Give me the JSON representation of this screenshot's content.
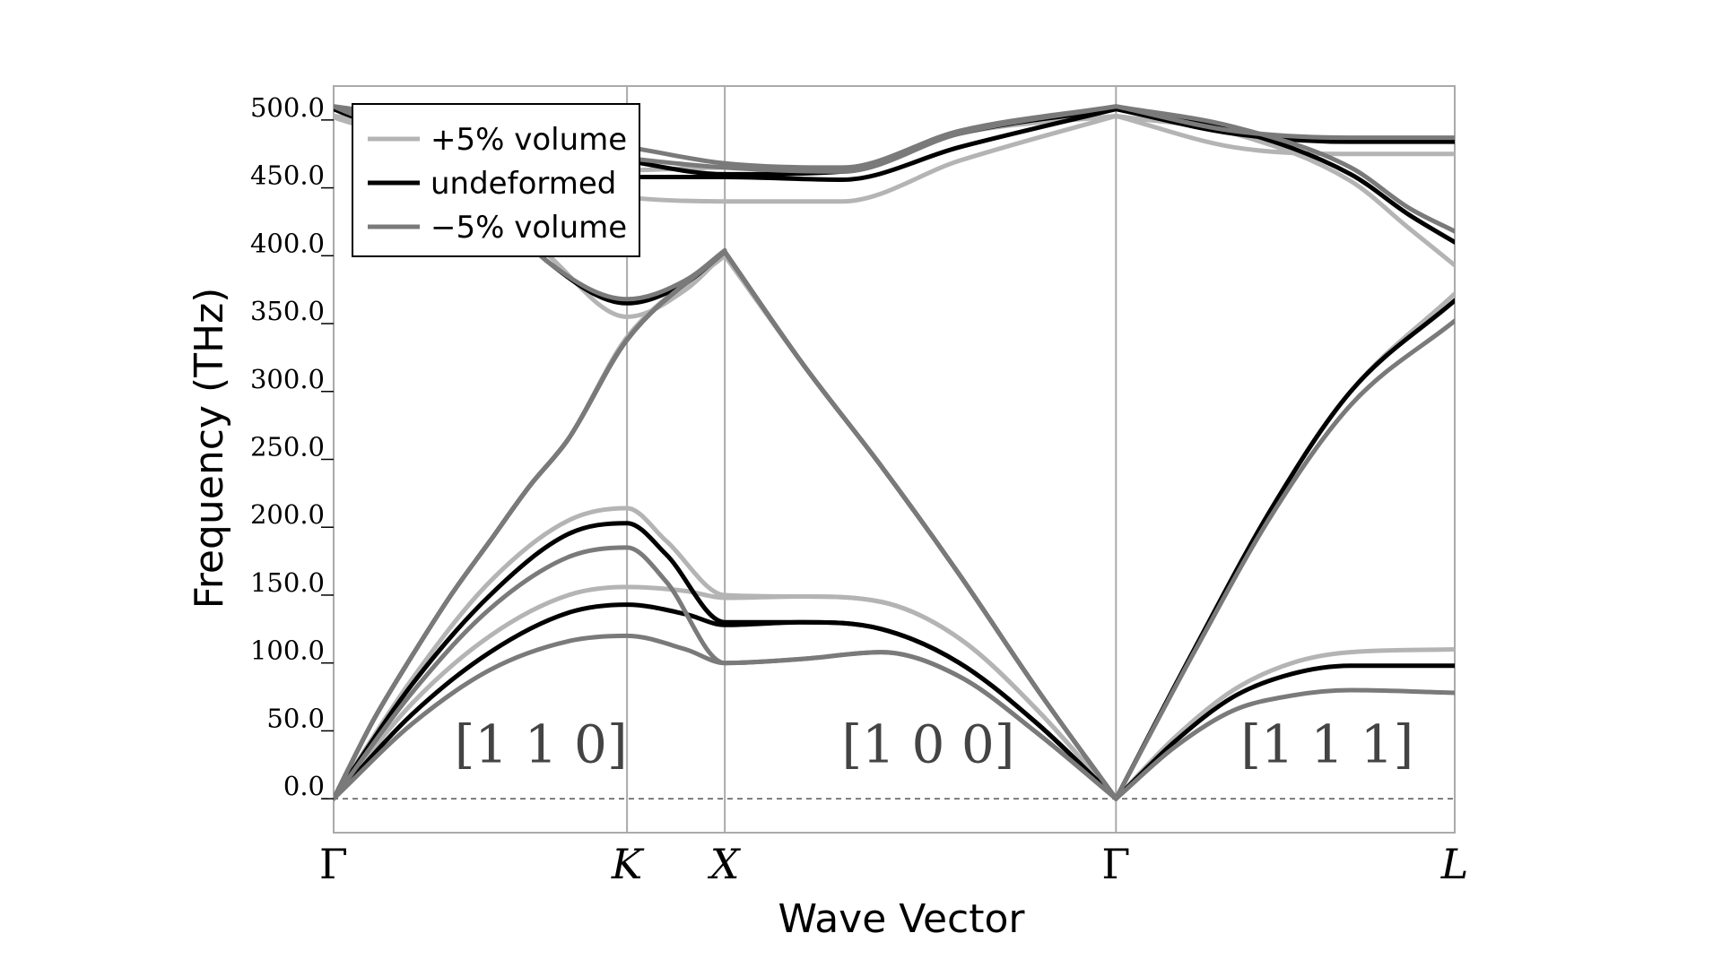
{
  "chart_data": {
    "type": "line",
    "title": "",
    "xlabel": "Wave Vector",
    "ylabel": "Frequency (THz)",
    "ylim": [
      -25,
      525
    ],
    "yticks": [
      "0.0",
      "50.0",
      "100.0",
      "150.0",
      "200.0",
      "250.0",
      "300.0",
      "350.0",
      "400.0",
      "450.0",
      "500.0"
    ],
    "xticks": [
      {
        "label": "Γ",
        "x": 0.0,
        "italic": false
      },
      {
        "label": "K",
        "x": 0.75,
        "italic": true
      },
      {
        "label": "X",
        "x": 1.0,
        "italic": true
      },
      {
        "label": "Γ",
        "x": 2.0,
        "italic": false
      },
      {
        "label": "L",
        "x": 2.866,
        "italic": true
      }
    ],
    "xlim": [
      0.0,
      2.866
    ],
    "grid": "vertical lines at high-symmetry points",
    "zero_line": "dashed",
    "direction_labels": [
      {
        "text": "[1 1 0]",
        "x": 0.53,
        "y": 40
      },
      {
        "text": "[1 0 0]",
        "x": 1.52,
        "y": 40
      },
      {
        "text": "[1 1 1]",
        "x": 2.54,
        "y": 40
      }
    ],
    "legend": {
      "position": "top-left"
    },
    "series": [
      {
        "name": "+5% volume",
        "color": "#b4b4b4",
        "branches": [
          {
            "x": [
              0,
              0.1,
              0.2,
              0.3,
              0.4,
              0.5,
              0.6,
              0.75,
              1.0
            ],
            "y": [
              0,
              57,
              105,
              150,
              190,
              230,
              265,
              340,
              400
            ]
          },
          {
            "x": [
              1.0,
              1.2,
              1.4,
              1.6,
              1.8,
              2.0
            ],
            "y": [
              400,
              320,
              245,
              165,
              80,
              0
            ]
          },
          {
            "x": [
              2.0,
              2.2,
              2.4,
              2.6,
              2.866
            ],
            "y": [
              0,
              110,
              215,
              300,
              372
            ]
          },
          {
            "x": [
              0,
              0.2,
              0.4,
              0.6,
              0.75,
              0.85,
              1.0,
              1.2,
              1.4,
              1.6,
              1.8,
              2.0
            ],
            "y": [
              0,
              88,
              160,
              205,
              214,
              190,
              150,
              149,
              145,
              118,
              65,
              0
            ]
          },
          {
            "x": [
              0,
              0.2,
              0.4,
              0.6,
              0.75,
              0.9,
              1.0,
              1.2,
              1.4,
              1.6,
              1.8,
              2.0
            ],
            "y": [
              0,
              70,
              120,
              150,
              156,
              153,
              148,
              149,
              145,
              118,
              65,
              0
            ]
          },
          {
            "x": [
              2.0,
              2.15,
              2.3,
              2.45,
              2.6,
              2.866
            ],
            "y": [
              0,
              45,
              80,
              100,
              108,
              110
            ]
          },
          {
            "x": [
              0,
              0.3,
              0.55,
              0.75,
              0.9,
              1.0
            ],
            "y": [
              502,
              470,
              400,
              355,
              375,
              402
            ]
          },
          {
            "x": [
              0,
              0.3,
              0.6,
              0.75,
              1.0,
              1.3,
              1.6,
              2.0
            ],
            "y": [
              503,
              478,
              450,
              443,
              440,
              440,
              470,
              503
            ]
          },
          {
            "x": [
              0,
              0.3,
              0.6,
              0.75,
              1.0,
              1.3,
              1.6,
              2.0
            ],
            "y": [
              503,
              490,
              470,
              463,
              465,
              462,
              490,
              503
            ]
          },
          {
            "x": [
              2.0,
              2.3,
              2.6,
              2.866
            ],
            "y": [
              503,
              480,
              475,
              475
            ]
          },
          {
            "x": [
              2.0,
              2.3,
              2.6,
              2.75,
              2.866
            ],
            "y": [
              503,
              490,
              455,
              420,
              393
            ]
          }
        ]
      },
      {
        "name": "undeformed",
        "color": "#000000",
        "branches": [
          {
            "x": [
              0,
              0.1,
              0.2,
              0.3,
              0.4,
              0.5,
              0.6,
              0.75,
              1.0
            ],
            "y": [
              0,
              57,
              105,
              150,
              190,
              230,
              265,
              338,
              403
            ]
          },
          {
            "x": [
              1.0,
              1.2,
              1.4,
              1.6,
              1.8,
              2.0
            ],
            "y": [
              403,
              320,
              245,
              165,
              80,
              0
            ]
          },
          {
            "x": [
              2.0,
              2.2,
              2.4,
              2.6,
              2.866
            ],
            "y": [
              0,
              110,
              215,
              300,
              367
            ]
          },
          {
            "x": [
              0,
              0.2,
              0.4,
              0.6,
              0.75,
              0.85,
              1.0,
              1.2,
              1.4,
              1.6,
              1.8,
              2.0
            ],
            "y": [
              0,
              84,
              150,
              195,
              203,
              180,
              130,
              130,
              125,
              100,
              55,
              0
            ]
          },
          {
            "x": [
              0,
              0.2,
              0.4,
              0.6,
              0.75,
              0.9,
              1.0,
              1.2,
              1.4,
              1.6,
              1.8,
              2.0
            ],
            "y": [
              0,
              62,
              108,
              137,
              143,
              136,
              128,
              130,
              125,
              100,
              55,
              0
            ]
          },
          {
            "x": [
              2.0,
              2.15,
              2.3,
              2.45,
              2.6,
              2.866
            ],
            "y": [
              0,
              42,
              75,
              92,
              98,
              98
            ]
          },
          {
            "x": [
              0,
              0.3,
              0.55,
              0.75,
              0.9,
              1.0
            ],
            "y": [
              508,
              470,
              395,
              365,
              380,
              403
            ]
          },
          {
            "x": [
              0,
              0.3,
              0.6,
              0.75,
              1.0,
              1.3,
              1.6,
              2.0
            ],
            "y": [
              508,
              485,
              462,
              458,
              458,
              456,
              480,
              508
            ]
          },
          {
            "x": [
              0,
              0.3,
              0.6,
              0.75,
              1.0,
              1.3,
              1.6,
              2.0
            ],
            "y": [
              508,
              495,
              478,
              470,
              460,
              462,
              490,
              508
            ]
          },
          {
            "x": [
              2.0,
              2.3,
              2.6,
              2.866
            ],
            "y": [
              508,
              490,
              484,
              484
            ]
          },
          {
            "x": [
              2.0,
              2.3,
              2.6,
              2.75,
              2.866
            ],
            "y": [
              508,
              493,
              460,
              430,
              410
            ]
          }
        ]
      },
      {
        "name": "−5% volume",
        "color": "#7a7a7a",
        "branches": [
          {
            "x": [
              0,
              0.1,
              0.2,
              0.3,
              0.4,
              0.5,
              0.6,
              0.75,
              1.0
            ],
            "y": [
              0,
              57,
              105,
              150,
              190,
              230,
              265,
              338,
              403
            ]
          },
          {
            "x": [
              1.0,
              1.2,
              1.4,
              1.6,
              1.8,
              2.0
            ],
            "y": [
              403,
              320,
              245,
              165,
              80,
              0
            ]
          },
          {
            "x": [
              2.0,
              2.2,
              2.4,
              2.6,
              2.866
            ],
            "y": [
              0,
              108,
              210,
              290,
              352
            ]
          },
          {
            "x": [
              0,
              0.2,
              0.4,
              0.6,
              0.75,
              0.85,
              1.0,
              1.2,
              1.4,
              1.6,
              1.8,
              2.0
            ],
            "y": [
              0,
              78,
              140,
              178,
              185,
              160,
              100,
              103,
              108,
              90,
              48,
              0
            ]
          },
          {
            "x": [
              0,
              0.2,
              0.4,
              0.6,
              0.75,
              0.9,
              1.0,
              1.2,
              1.4,
              1.6,
              1.8,
              2.0
            ],
            "y": [
              0,
              55,
              95,
              116,
              120,
              110,
              100,
              103,
              108,
              90,
              48,
              0
            ]
          },
          {
            "x": [
              2.0,
              2.15,
              2.3,
              2.45,
              2.6,
              2.866
            ],
            "y": [
              0,
              38,
              65,
              76,
              80,
              78
            ]
          },
          {
            "x": [
              0,
              0.3,
              0.55,
              0.75,
              0.9,
              1.0
            ],
            "y": [
              510,
              470,
              395,
              368,
              382,
              404
            ]
          },
          {
            "x": [
              0,
              0.3,
              0.6,
              0.75,
              1.0,
              1.3,
              1.6,
              2.0
            ],
            "y": [
              510,
              495,
              478,
              472,
              465,
              462,
              490,
              510
            ]
          },
          {
            "x": [
              0,
              0.3,
              0.6,
              0.75,
              1.0,
              1.3,
              1.6,
              2.0
            ],
            "y": [
              510,
              498,
              485,
              480,
              468,
              465,
              492,
              510
            ]
          },
          {
            "x": [
              2.0,
              2.3,
              2.6,
              2.866
            ],
            "y": [
              510,
              492,
              487,
              487
            ]
          },
          {
            "x": [
              2.0,
              2.3,
              2.6,
              2.75,
              2.866
            ],
            "y": [
              510,
              495,
              465,
              435,
              418
            ]
          }
        ]
      }
    ]
  }
}
